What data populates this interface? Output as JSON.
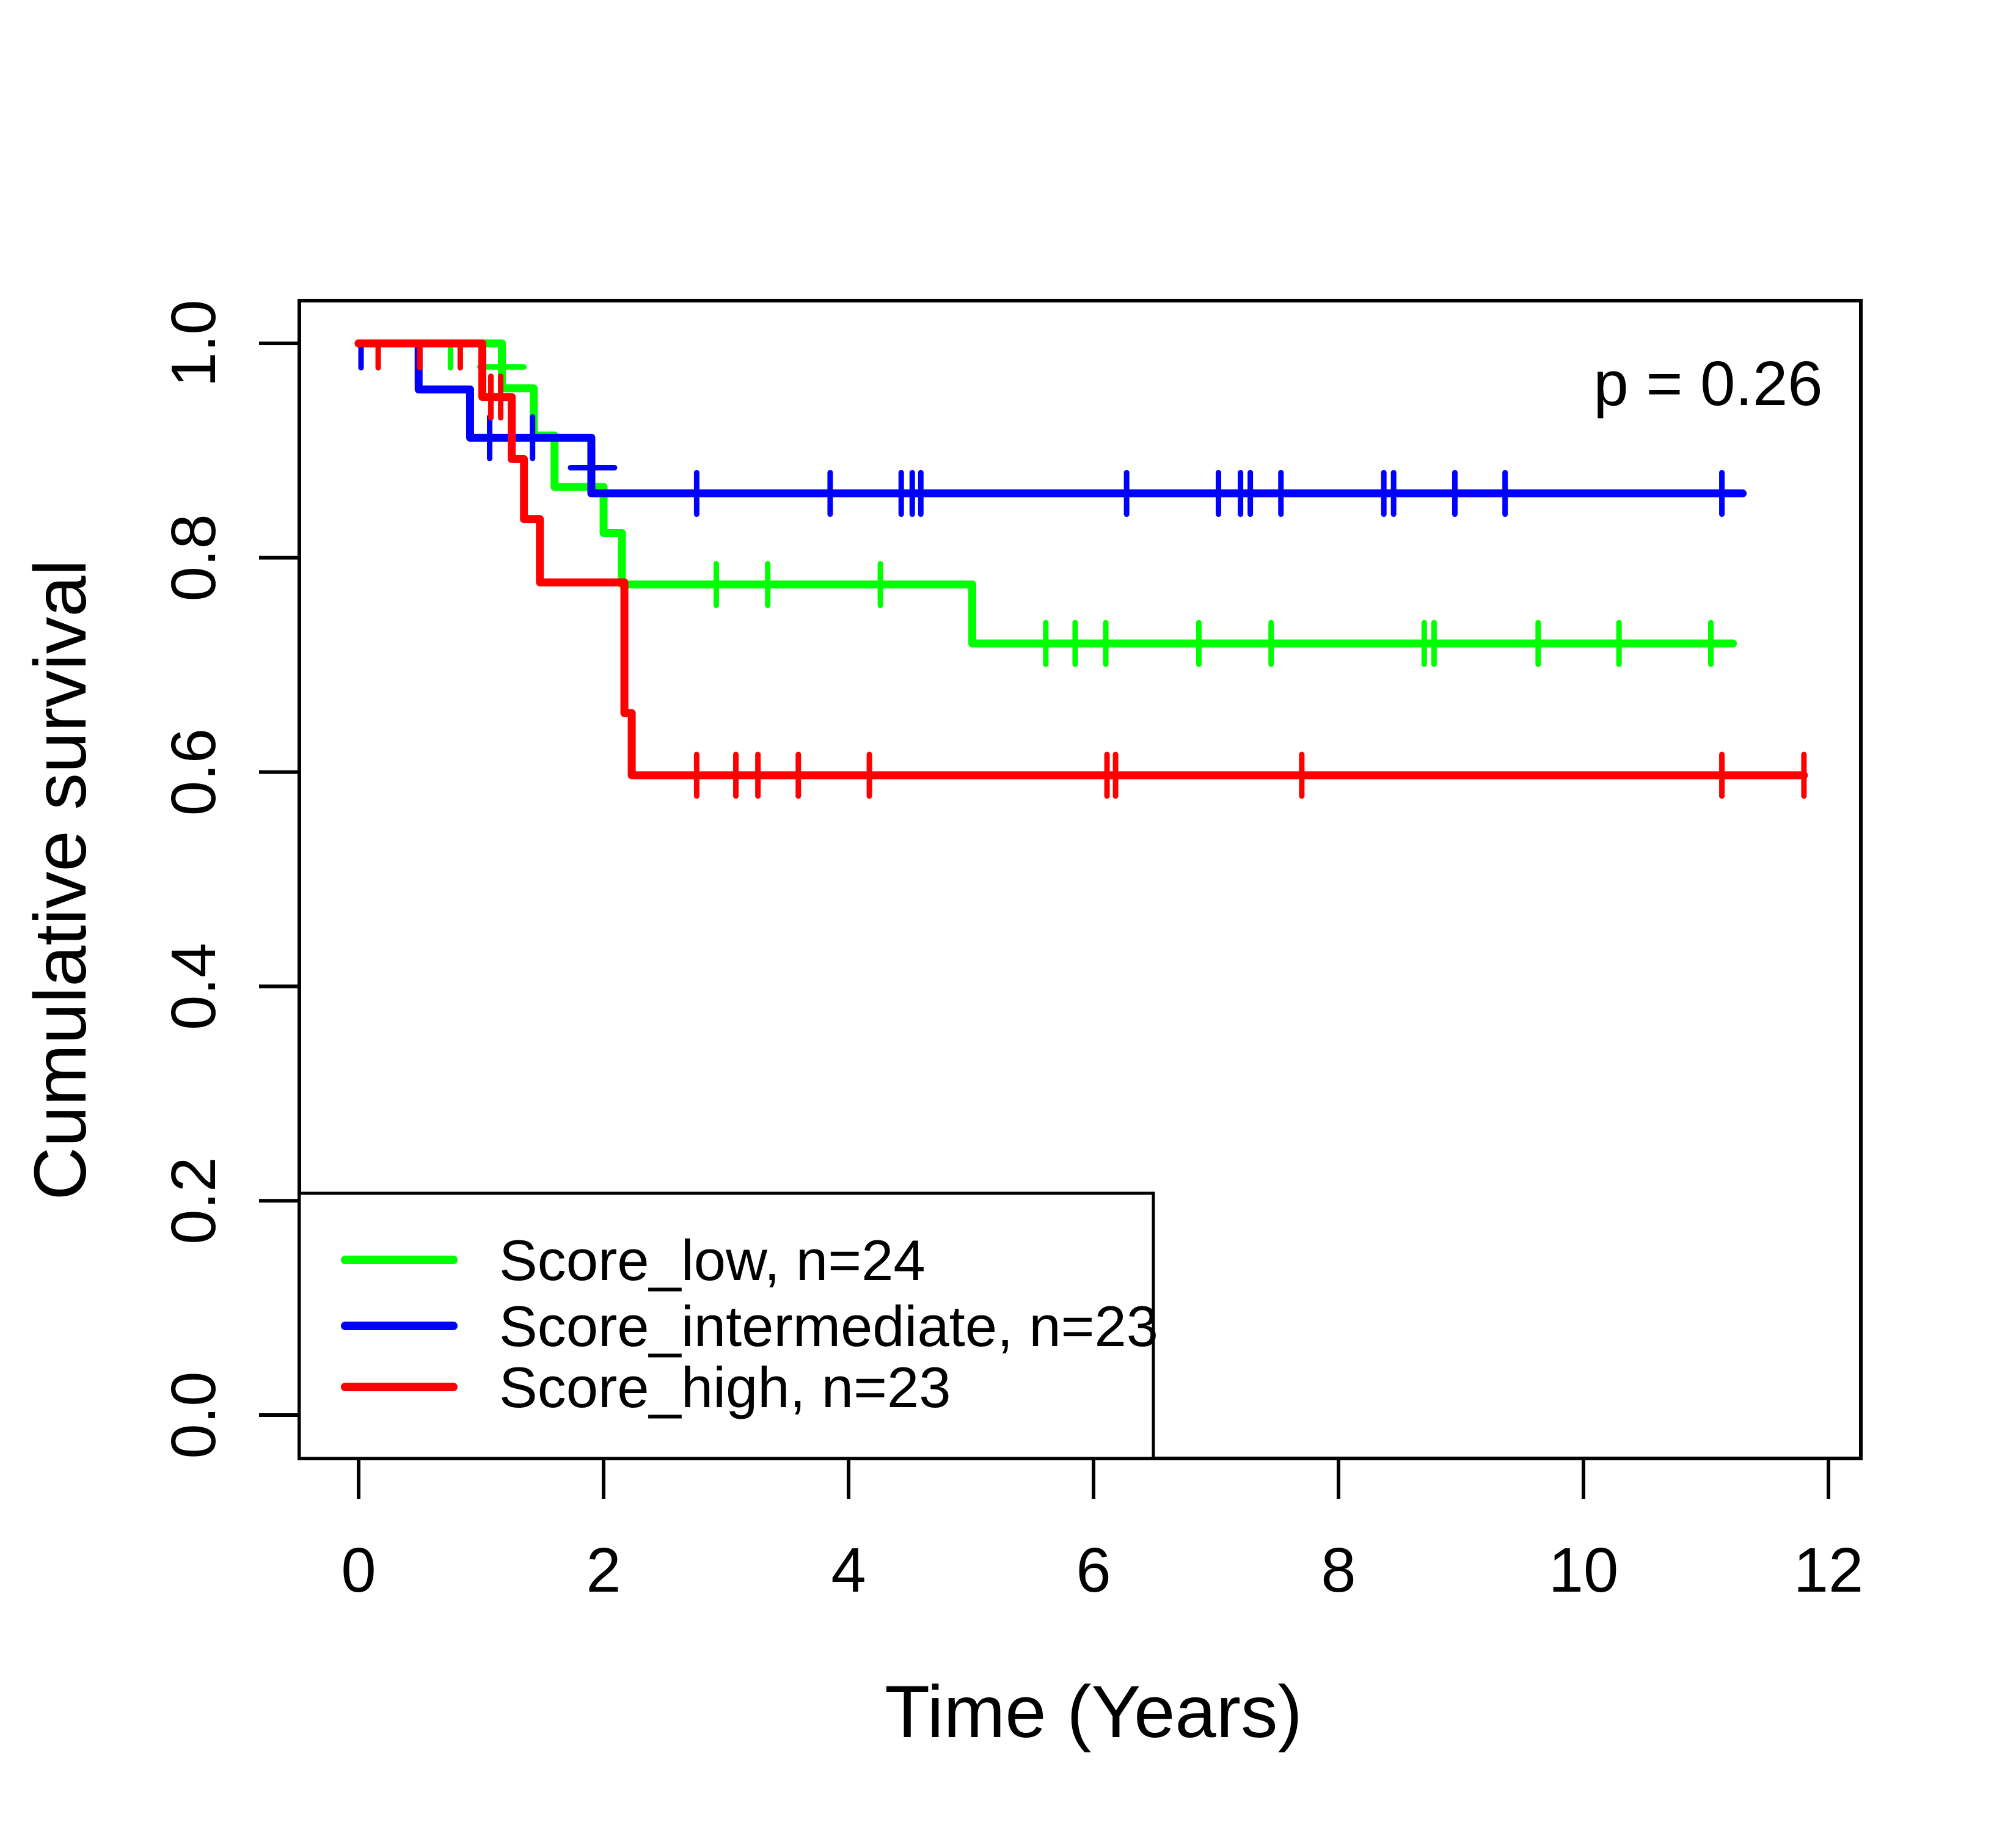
{
  "figure": {
    "background": "#ffffff",
    "border_color": "#000000"
  },
  "chart_data": {
    "type": "line",
    "variant": "kaplan-meier-step",
    "title": "",
    "p_label": "p = 0.26",
    "xlabel": "Time (Years)",
    "ylabel": "Cumulative survival",
    "xlim": [
      0,
      12
    ],
    "ylim": [
      0,
      1
    ],
    "grid": false,
    "legend_position": "bottom-left",
    "xticks": {
      "values": [
        0,
        2,
        4,
        6,
        8,
        10,
        12
      ],
      "labels": [
        "0",
        "2",
        "4",
        "6",
        "8",
        "10",
        "12"
      ]
    },
    "yticks": {
      "values": [
        0,
        0.2,
        0.4,
        0.6,
        0.8,
        1.0
      ],
      "labels": [
        "0.0",
        "0.2",
        "0.4",
        "0.6",
        "0.8",
        "1.0"
      ]
    },
    "series": [
      {
        "name": "Score_low, n=24",
        "color": "#00ff00",
        "n": 24,
        "steps": [
          [
            0,
            1.0
          ],
          [
            1.17,
            1.0
          ],
          [
            1.17,
            0.958
          ],
          [
            1.43,
            0.958
          ],
          [
            1.43,
            0.914
          ],
          [
            1.6,
            0.914
          ],
          [
            1.6,
            0.866
          ],
          [
            2.0,
            0.866
          ],
          [
            2.0,
            0.823
          ],
          [
            2.15,
            0.823
          ],
          [
            2.15,
            0.775
          ],
          [
            5.01,
            0.775
          ],
          [
            5.01,
            0.72
          ],
          [
            11.22,
            0.72
          ]
        ],
        "censors": [
          [
            0.75,
            1.0
          ],
          [
            2.92,
            0.775
          ],
          [
            3.34,
            0.775
          ],
          [
            4.26,
            0.775
          ],
          [
            5.61,
            0.72
          ],
          [
            5.85,
            0.72
          ],
          [
            6.1,
            0.72
          ],
          [
            6.86,
            0.72
          ],
          [
            7.45,
            0.72
          ],
          [
            8.7,
            0.72
          ],
          [
            8.78,
            0.72
          ],
          [
            9.63,
            0.72
          ],
          [
            10.29,
            0.72
          ],
          [
            11.04,
            0.72
          ]
        ],
        "plus_marks": [
          [
            1.17,
            0.978
          ]
        ]
      },
      {
        "name": "Score_intermediate, n=23",
        "color": "#0000ff",
        "n": 23,
        "steps": [
          [
            0,
            1.0
          ],
          [
            0.49,
            1.0
          ],
          [
            0.49,
            0.957
          ],
          [
            0.91,
            0.957
          ],
          [
            0.91,
            0.912
          ],
          [
            1.9,
            0.912
          ],
          [
            1.9,
            0.86
          ],
          [
            11.3,
            0.86
          ]
        ],
        "censors": [
          [
            0.02,
            1.0
          ],
          [
            1.07,
            0.912
          ],
          [
            1.42,
            0.912
          ],
          [
            2.76,
            0.86
          ],
          [
            3.85,
            0.86
          ],
          [
            4.43,
            0.86
          ],
          [
            4.52,
            0.86
          ],
          [
            4.59,
            0.86
          ],
          [
            6.27,
            0.86
          ],
          [
            7.02,
            0.86
          ],
          [
            7.2,
            0.86
          ],
          [
            7.28,
            0.86
          ],
          [
            7.53,
            0.86
          ],
          [
            8.37,
            0.86
          ],
          [
            8.45,
            0.86
          ],
          [
            8.95,
            0.86
          ],
          [
            9.36,
            0.86
          ],
          [
            11.13,
            0.86
          ]
        ],
        "plus_marks": [
          [
            1.91,
            0.884
          ]
        ]
      },
      {
        "name": "Score_high, n=23",
        "color": "#ff0000",
        "n": 23,
        "steps": [
          [
            0,
            1.0
          ],
          [
            1.01,
            1.0
          ],
          [
            1.01,
            0.95
          ],
          [
            1.25,
            0.95
          ],
          [
            1.25,
            0.892
          ],
          [
            1.35,
            0.892
          ],
          [
            1.35,
            0.836
          ],
          [
            1.48,
            0.836
          ],
          [
            1.48,
            0.777
          ],
          [
            2.17,
            0.777
          ],
          [
            2.17,
            0.655
          ],
          [
            2.23,
            0.655
          ],
          [
            2.23,
            0.597
          ],
          [
            11.8,
            0.597
          ]
        ],
        "censors": [
          [
            0.16,
            1.0
          ],
          [
            0.5,
            1.0
          ],
          [
            0.83,
            1.0
          ],
          [
            1.08,
            0.95
          ],
          [
            1.16,
            0.95
          ],
          [
            2.76,
            0.597
          ],
          [
            3.08,
            0.597
          ],
          [
            3.26,
            0.597
          ],
          [
            3.59,
            0.597
          ],
          [
            4.17,
            0.597
          ],
          [
            6.11,
            0.597
          ],
          [
            6.18,
            0.597
          ],
          [
            7.7,
            0.597
          ],
          [
            11.13,
            0.597
          ],
          [
            11.8,
            0.597
          ]
        ],
        "plus_marks": []
      }
    ]
  }
}
